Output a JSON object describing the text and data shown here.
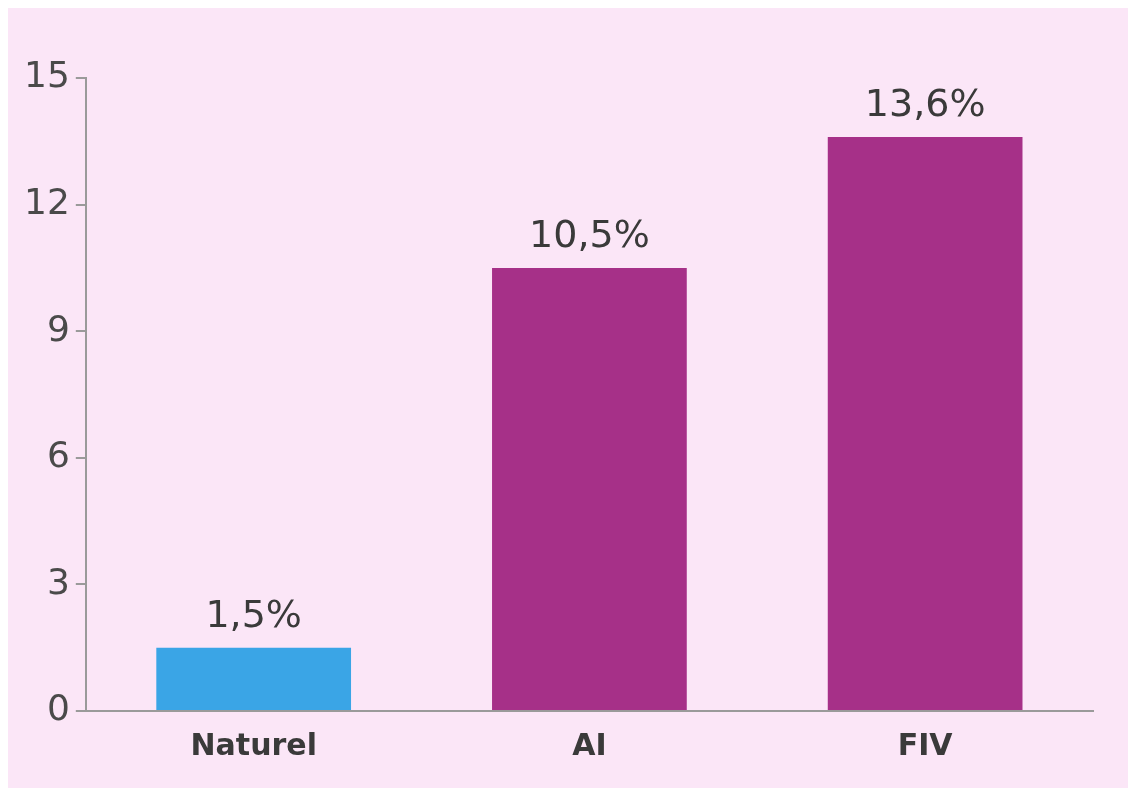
{
  "chart_data": {
    "type": "bar",
    "categories": [
      "Naturel",
      "AI",
      "FIV"
    ],
    "values": [
      1.5,
      10.5,
      13.6
    ],
    "colors": [
      "#3aa5e6",
      "#a63088",
      "#a63088"
    ],
    "value_labels": [
      "1,5%",
      "10,5%",
      "13,6%"
    ],
    "ylim": [
      0,
      15
    ],
    "yticks": [
      0,
      3,
      6,
      9,
      12,
      15
    ],
    "grid": false,
    "legend": false
  }
}
